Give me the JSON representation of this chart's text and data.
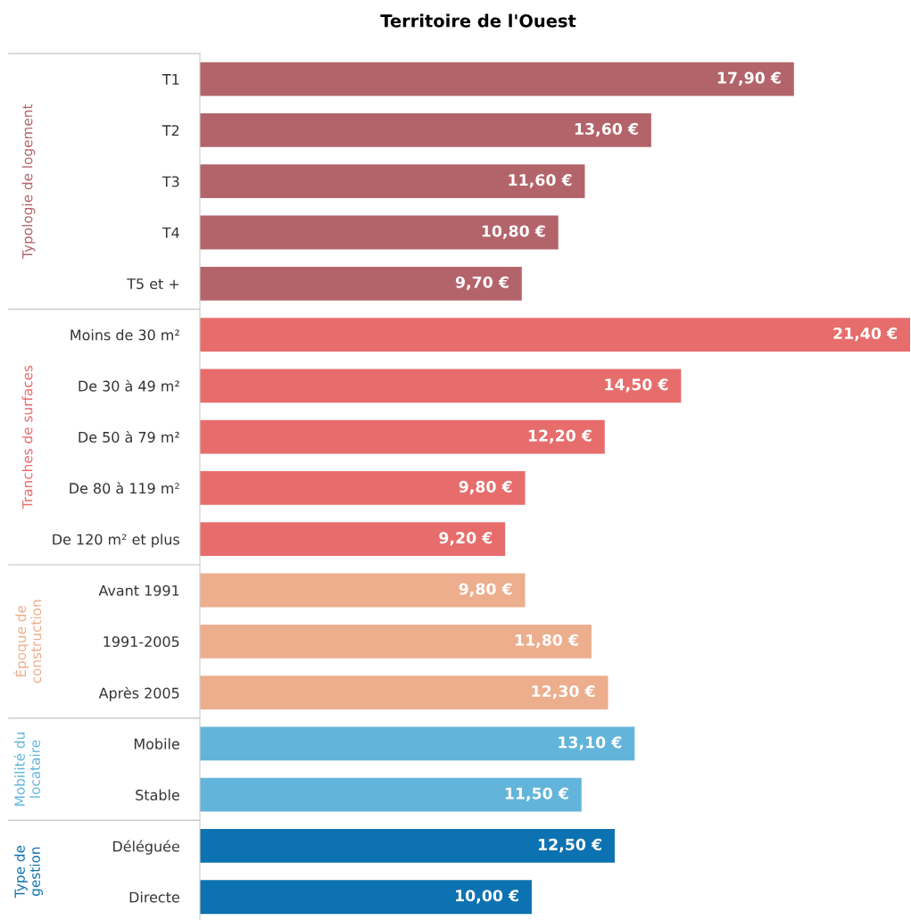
{
  "chart_data": {
    "type": "bar",
    "orientation": "horizontal",
    "title": "Territoire de l'Ouest",
    "categories": [
      "T1",
      "T2",
      "T3",
      "T4",
      "T5 et +",
      "Moins de 30 m²",
      "De 30 à 49 m²",
      "De 50 à 79 m²",
      "De 80 à 119 m²",
      "De 120 m² et plus",
      "Avant 1991",
      "1991-2005",
      "Après 2005",
      "Mobile",
      "Stable",
      "Déléguée",
      "Directe"
    ],
    "grid": false,
    "legend": false,
    "tick_labels": "y",
    "series": [
      {
        "name": "Typologie de logement",
        "color": "#b3646a",
        "values": [
          17.9,
          13.6,
          11.6,
          10.8,
          9.7,
          null,
          null,
          null,
          null,
          null,
          null,
          null,
          null,
          null,
          null,
          null,
          null
        ],
        "value_labels": [
          "17,90 €",
          "13,60 €",
          "11,60 €",
          "10,80 €",
          "9,70 €",
          null,
          null,
          null,
          null,
          null,
          null,
          null,
          null,
          null,
          null,
          null,
          null
        ]
      },
      {
        "name": "Tranches de surfaces",
        "color": "#e76d6c",
        "values": [
          null,
          null,
          null,
          null,
          null,
          21.4,
          14.5,
          12.2,
          9.8,
          9.2,
          null,
          null,
          null,
          null,
          null,
          null,
          null
        ],
        "value_labels": [
          null,
          null,
          null,
          null,
          null,
          "21,40 €",
          "14,50 €",
          "12,20 €",
          "9,80 €",
          "9,20 €",
          null,
          null,
          null,
          null,
          null,
          null,
          null
        ]
      },
      {
        "name": "Époque de construction",
        "color": "#ecae8d",
        "values": [
          null,
          null,
          null,
          null,
          null,
          null,
          null,
          null,
          null,
          null,
          9.8,
          11.8,
          12.3,
          null,
          null,
          null,
          null
        ],
        "value_labels": [
          null,
          null,
          null,
          null,
          null,
          null,
          null,
          null,
          null,
          null,
          "9,80 €",
          "11,80 €",
          "12,30 €",
          null,
          null,
          null,
          null
        ]
      },
      {
        "name": "Mobilité du locataire",
        "color": "#62b4da",
        "values": [
          null,
          null,
          null,
          null,
          null,
          null,
          null,
          null,
          null,
          null,
          null,
          null,
          null,
          13.1,
          11.5,
          null,
          null
        ],
        "value_labels": [
          null,
          null,
          null,
          null,
          null,
          null,
          null,
          null,
          null,
          null,
          null,
          null,
          null,
          "13,10 €",
          "11,50 €",
          null,
          null
        ]
      },
      {
        "name": "Type de gestion",
        "color": "#0d72b1",
        "values": [
          null,
          null,
          null,
          null,
          null,
          null,
          null,
          null,
          null,
          null,
          null,
          null,
          null,
          null,
          null,
          12.5,
          10.0
        ],
        "value_labels": [
          null,
          null,
          null,
          null,
          null,
          null,
          null,
          null,
          null,
          null,
          null,
          null,
          null,
          null,
          null,
          "12,50 €",
          "10,00 €"
        ]
      }
    ]
  }
}
